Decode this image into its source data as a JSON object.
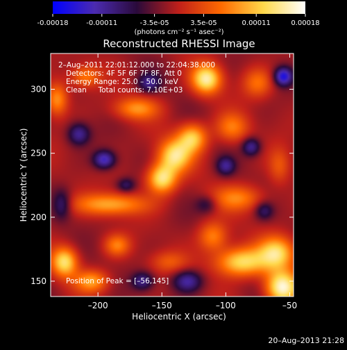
{
  "colorbar": {
    "ticks": [
      "-0.00018",
      "-0.00011",
      "-3.5e-05",
      "3.5e-05",
      "0.00011",
      "0.00018"
    ],
    "tick_values": [
      -0.00018,
      -0.00011,
      -3.5e-05,
      3.5e-05,
      0.00011,
      0.00018
    ],
    "units": "(photons cm⁻² s⁻¹ asec⁻²)",
    "colors": [
      "#0000ff",
      "#4b2bb0",
      "#2a0a3a",
      "#c0201a",
      "#ff6a00",
      "#ffd84a",
      "#ffffff"
    ]
  },
  "annotations": {
    "time": "2–Aug–2011 22:01:12.000 to 22:04:38.000",
    "detectors": "Detectors: 4F 5F 6F 7F 8F, Att 0",
    "energy": "Energy Range: 25.0 – 50.0 keV",
    "clean": "Clean     Total counts: 7.10E+03",
    "peak": "Position of Peak = [–56,145]"
  },
  "footer": {
    "date": "20–Aug–2013 21:28"
  },
  "chart_data": {
    "type": "heatmap",
    "title": "Reconstructed RHESSI Image",
    "xlabel": "Heliocentric X (arcsec)",
    "ylabel": "Heliocentric Y (arcsec)",
    "xlim": [
      -237,
      -47
    ],
    "ylim": [
      138,
      328
    ],
    "x_ticks": [
      -200,
      -150,
      -100,
      -50
    ],
    "y_ticks": [
      150,
      200,
      250,
      300
    ],
    "x_tick_labels": [
      "–200",
      "–150",
      "–100",
      "–50"
    ],
    "y_tick_labels": [
      "150",
      "200",
      "250",
      "300"
    ],
    "vrange": [
      -0.00018,
      0.00018
    ],
    "peak": [
      -56,
      145
    ],
    "blobs": [
      {
        "x": -56,
        "y": 145,
        "sx": 9,
        "sy": 9,
        "a": 1.0
      },
      {
        "x": -88,
        "y": 165,
        "sx": 14,
        "sy": 8,
        "a": 0.82
      },
      {
        "x": -60,
        "y": 172,
        "sx": 10,
        "sy": 9,
        "a": 0.75
      },
      {
        "x": -115,
        "y": 308,
        "sx": 8,
        "sy": 8,
        "a": 0.9
      },
      {
        "x": -150,
        "y": 230,
        "sx": 8,
        "sy": 8,
        "a": 0.85
      },
      {
        "x": -140,
        "y": 248,
        "sx": 9,
        "sy": 9,
        "a": 0.8
      },
      {
        "x": -126,
        "y": 262,
        "sx": 8,
        "sy": 8,
        "a": 0.72
      },
      {
        "x": -226,
        "y": 165,
        "sx": 7,
        "sy": 8,
        "a": 0.8
      },
      {
        "x": -232,
        "y": 292,
        "sx": 6,
        "sy": 9,
        "a": 0.55
      },
      {
        "x": -190,
        "y": 210,
        "sx": 20,
        "sy": 6,
        "a": 0.6
      },
      {
        "x": -170,
        "y": 285,
        "sx": 12,
        "sy": 6,
        "a": 0.5
      },
      {
        "x": -210,
        "y": 310,
        "sx": 8,
        "sy": 6,
        "a": 0.45
      },
      {
        "x": -90,
        "y": 215,
        "sx": 14,
        "sy": 7,
        "a": 0.45
      },
      {
        "x": -110,
        "y": 185,
        "sx": 8,
        "sy": 8,
        "a": 0.5
      },
      {
        "x": -185,
        "y": 178,
        "sx": 7,
        "sy": 6,
        "a": 0.45
      },
      {
        "x": -205,
        "y": 150,
        "sx": 9,
        "sy": 6,
        "a": 0.55
      },
      {
        "x": -95,
        "y": 270,
        "sx": 9,
        "sy": 8,
        "a": 0.45
      },
      {
        "x": -75,
        "y": 305,
        "sx": 8,
        "sy": 8,
        "a": 0.4
      },
      {
        "x": -145,
        "y": 165,
        "sx": 10,
        "sy": 6,
        "a": 0.3
      },
      {
        "x": -58,
        "y": 240,
        "sx": 6,
        "sy": 10,
        "a": 0.3
      },
      {
        "x": -55,
        "y": 310,
        "sx": 5,
        "sy": 5,
        "a": -0.75
      },
      {
        "x": -195,
        "y": 245,
        "sx": 6,
        "sy": 5,
        "a": -0.65
      },
      {
        "x": -215,
        "y": 265,
        "sx": 6,
        "sy": 6,
        "a": -0.5
      },
      {
        "x": -130,
        "y": 150,
        "sx": 8,
        "sy": 6,
        "a": -0.55
      },
      {
        "x": -165,
        "y": 150,
        "sx": 6,
        "sy": 5,
        "a": -0.45
      },
      {
        "x": -100,
        "y": 240,
        "sx": 5,
        "sy": 5,
        "a": -0.45
      },
      {
        "x": -80,
        "y": 255,
        "sx": 5,
        "sy": 5,
        "a": -0.5
      },
      {
        "x": -160,
        "y": 305,
        "sx": 6,
        "sy": 5,
        "a": -0.45
      },
      {
        "x": -228,
        "y": 210,
        "sx": 5,
        "sy": 8,
        "a": -0.4
      },
      {
        "x": -178,
        "y": 225,
        "sx": 5,
        "sy": 4,
        "a": -0.35
      },
      {
        "x": -115,
        "y": 210,
        "sx": 6,
        "sy": 5,
        "a": -0.3
      },
      {
        "x": -70,
        "y": 205,
        "sx": 5,
        "sy": 5,
        "a": -0.35
      }
    ]
  }
}
